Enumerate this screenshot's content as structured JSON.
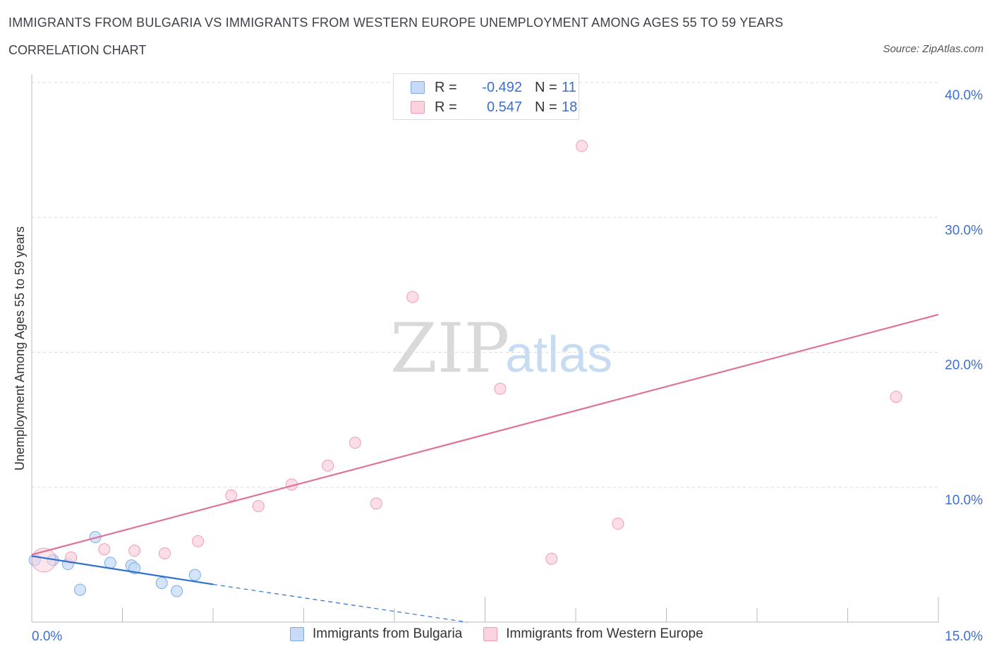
{
  "header": {
    "title": "IMMIGRANTS FROM BULGARIA VS IMMIGRANTS FROM WESTERN EUROPE UNEMPLOYMENT AMONG AGES 55 TO 59 YEARS",
    "subtitle": "CORRELATION CHART",
    "source": "Source: ZipAtlas.com"
  },
  "watermark": {
    "zip": "ZIP",
    "atlas": "atlas"
  },
  "legend_top": {
    "rows": [
      {
        "r_label": "R =",
        "r_value": "-0.492",
        "n_label": "N =",
        "n_value": "11",
        "color": "#a9c8f2",
        "border": "#7eaae6"
      },
      {
        "r_label": "R =",
        "r_value": "0.547",
        "n_label": "N =",
        "n_value": "18",
        "color": "#f7c6d4",
        "border": "#ee9db5"
      }
    ]
  },
  "legend_bottom": {
    "items": [
      {
        "label": "Immigrants from Bulgaria",
        "color": "#c5dbf7",
        "border": "#7eaae6"
      },
      {
        "label": "Immigrants from Western Europe",
        "color": "#fbd3df",
        "border": "#ee9db5"
      }
    ]
  },
  "chart_data": {
    "type": "scatter",
    "title": "IMMIGRANTS FROM BULGARIA VS IMMIGRANTS FROM WESTERN EUROPE UNEMPLOYMENT AMONG AGES 55 TO 59 YEARS",
    "xlabel": "",
    "ylabel": "Unemployment Among Ages 55 to 59 years",
    "xlim": [
      0,
      15
    ],
    "ylim": [
      0,
      40
    ],
    "x_tick_labels": [
      "0.0%",
      "15.0%"
    ],
    "y_ticks": [
      10,
      20,
      30,
      40
    ],
    "y_tick_labels": [
      "10.0%",
      "20.0%",
      "30.0%",
      "40.0%"
    ],
    "grid": true,
    "series": [
      {
        "name": "Immigrants from Bulgaria",
        "color": "#7eaae6",
        "fill": "#c5dbf7",
        "points": [
          {
            "x": 0.05,
            "y": 4.6
          },
          {
            "x": 0.35,
            "y": 4.6
          },
          {
            "x": 0.6,
            "y": 4.3
          },
          {
            "x": 0.8,
            "y": 2.4
          },
          {
            "x": 1.05,
            "y": 6.3
          },
          {
            "x": 1.3,
            "y": 4.4
          },
          {
            "x": 1.65,
            "y": 4.2
          },
          {
            "x": 1.7,
            "y": 4.0
          },
          {
            "x": 2.15,
            "y": 2.9
          },
          {
            "x": 2.4,
            "y": 2.3
          },
          {
            "x": 2.7,
            "y": 3.5
          }
        ],
        "trend": {
          "x": [
            0,
            3.0
          ],
          "y": [
            4.9,
            2.8
          ],
          "color": "#2f6fd0",
          "dashed_extension": {
            "x": [
              3.0,
              7.2
            ],
            "y": [
              2.8,
              0
            ]
          }
        }
      },
      {
        "name": "Immigrants from Western Europe",
        "color": "#ee9db5",
        "fill": "#fbd3df",
        "points": [
          {
            "x": 0.2,
            "y": 4.6,
            "big": true
          },
          {
            "x": 0.65,
            "y": 4.8
          },
          {
            "x": 1.2,
            "y": 5.4
          },
          {
            "x": 1.7,
            "y": 5.3
          },
          {
            "x": 2.2,
            "y": 5.1
          },
          {
            "x": 2.75,
            "y": 6.0
          },
          {
            "x": 3.3,
            "y": 9.4
          },
          {
            "x": 3.75,
            "y": 8.6
          },
          {
            "x": 4.3,
            "y": 10.2
          },
          {
            "x": 4.9,
            "y": 11.6
          },
          {
            "x": 5.35,
            "y": 13.3
          },
          {
            "x": 5.7,
            "y": 8.8
          },
          {
            "x": 6.3,
            "y": 24.1
          },
          {
            "x": 7.75,
            "y": 17.3
          },
          {
            "x": 8.6,
            "y": 4.7
          },
          {
            "x": 9.1,
            "y": 35.3
          },
          {
            "x": 9.7,
            "y": 7.3
          },
          {
            "x": 14.3,
            "y": 16.7
          }
        ],
        "trend": {
          "x": [
            0,
            15
          ],
          "y": [
            5.0,
            22.8
          ],
          "color": "#e0729a"
        }
      }
    ]
  }
}
